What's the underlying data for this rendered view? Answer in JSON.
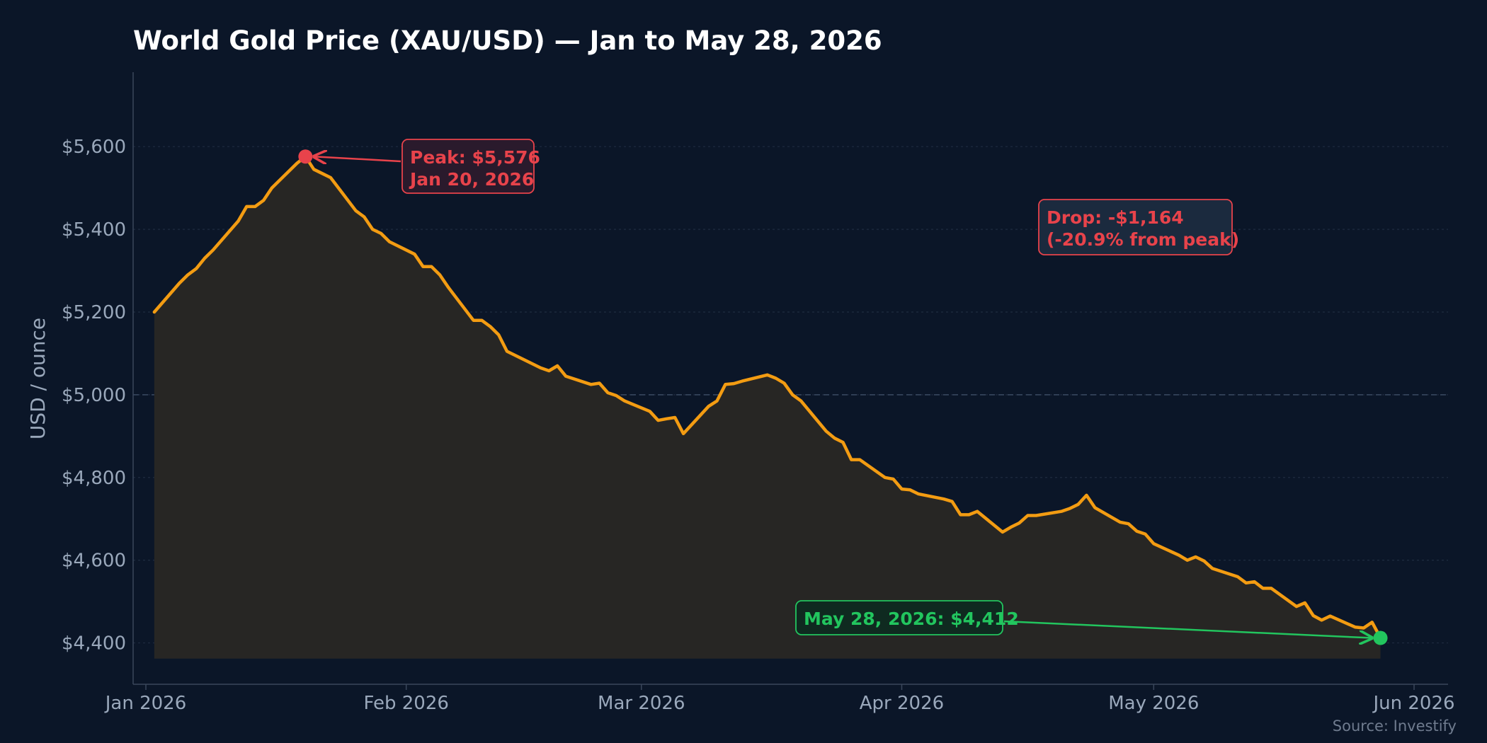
{
  "chart_data": {
    "type": "area",
    "title": "World Gold Price (XAU/USD) — Jan to May 28, 2026",
    "ylabel": "USD / ounce",
    "xlabel": "",
    "source": "Source: Investify",
    "xlim": [
      "2026-01-01",
      "2026-06-01"
    ],
    "ylim": [
      4300,
      5780
    ],
    "x_ticks": [
      {
        "date": "2026-01-01",
        "label": "Jan 2026"
      },
      {
        "date": "2026-02-01",
        "label": "Feb 2026"
      },
      {
        "date": "2026-03-01",
        "label": "Mar 2026"
      },
      {
        "date": "2026-04-01",
        "label": "Apr 2026"
      },
      {
        "date": "2026-05-01",
        "label": "May 2026"
      },
      {
        "date": "2026-06-01",
        "label": "Jun 2026"
      }
    ],
    "y_ticks": [
      {
        "value": 4400,
        "label": "$4,400"
      },
      {
        "value": 4600,
        "label": "$4,600"
      },
      {
        "value": 4800,
        "label": "$4,800"
      },
      {
        "value": 5000,
        "label": "$5,000"
      },
      {
        "value": 5200,
        "label": "$5,200"
      },
      {
        "value": 5400,
        "label": "$5,400"
      },
      {
        "value": 5600,
        "label": "$5,600"
      }
    ],
    "grid": true,
    "reference_line": {
      "value": 5000,
      "label": "$5,000"
    },
    "colors": {
      "line": "#f39c12",
      "peak": "#e8434b",
      "latest": "#22c55e",
      "background": "#0b1628",
      "grid": "#1f2c40",
      "text": "#9aa8bb"
    },
    "series": [
      {
        "x": [
          "2026-01-02",
          "2026-01-05",
          "2026-01-06",
          "2026-01-07",
          "2026-01-08",
          "2026-01-09",
          "2026-01-12",
          "2026-01-13",
          "2026-01-14",
          "2026-01-15",
          "2026-01-16",
          "2026-01-19",
          "2026-01-20",
          "2026-01-21",
          "2026-01-22",
          "2026-01-23",
          "2026-01-26",
          "2026-01-27",
          "2026-01-28",
          "2026-01-29",
          "2026-01-30",
          "2026-02-02",
          "2026-02-03",
          "2026-02-04",
          "2026-02-05",
          "2026-02-06",
          "2026-02-09",
          "2026-02-10",
          "2026-02-11",
          "2026-02-12",
          "2026-02-13",
          "2026-02-16",
          "2026-02-17",
          "2026-02-18",
          "2026-02-19",
          "2026-02-20",
          "2026-02-23",
          "2026-02-24",
          "2026-02-25",
          "2026-02-26",
          "2026-02-27",
          "2026-03-02",
          "2026-03-03",
          "2026-03-04",
          "2026-03-05",
          "2026-03-06",
          "2026-03-09",
          "2026-03-10",
          "2026-03-11",
          "2026-03-12",
          "2026-03-13",
          "2026-03-16",
          "2026-03-17",
          "2026-03-18",
          "2026-03-19",
          "2026-03-20",
          "2026-03-23",
          "2026-03-24",
          "2026-03-25",
          "2026-03-26",
          "2026-03-27",
          "2026-03-30",
          "2026-03-31",
          "2026-04-01",
          "2026-04-02",
          "2026-04-03",
          "2026-04-06",
          "2026-04-07",
          "2026-04-08",
          "2026-04-09",
          "2026-04-10",
          "2026-04-13",
          "2026-04-14",
          "2026-04-15",
          "2026-04-16",
          "2026-04-17",
          "2026-04-20",
          "2026-04-21",
          "2026-04-22",
          "2026-04-23",
          "2026-04-24",
          "2026-04-27",
          "2026-04-28",
          "2026-04-29",
          "2026-04-30",
          "2026-05-01",
          "2026-05-04",
          "2026-05-05",
          "2026-05-06",
          "2026-05-07",
          "2026-05-08",
          "2026-05-11",
          "2026-05-12",
          "2026-05-13",
          "2026-05-14",
          "2026-05-15",
          "2026-05-18",
          "2026-05-19",
          "2026-05-20",
          "2026-05-21",
          "2026-05-22",
          "2026-05-25",
          "2026-05-26",
          "2026-05-27",
          "2026-05-28"
        ],
        "values": [
          5200,
          5270,
          5290,
          5305,
          5330,
          5350,
          5420,
          5455,
          5455,
          5470,
          5500,
          5560,
          5576,
          5545,
          5535,
          5525,
          5445,
          5430,
          5400,
          5390,
          5370,
          5340,
          5310,
          5310,
          5290,
          5260,
          5180,
          5180,
          5165,
          5145,
          5105,
          5075,
          5065,
          5058,
          5070,
          5045,
          5025,
          5028,
          5005,
          4998,
          4985,
          4960,
          4938,
          4942,
          4945,
          4906,
          4972,
          4985,
          5025,
          5027,
          5033,
          5048,
          5040,
          5028,
          5000,
          4985,
          4912,
          4895,
          4885,
          4843,
          4843,
          4800,
          4796,
          4772,
          4770,
          4760,
          4748,
          4742,
          4710,
          4710,
          4718,
          4668,
          4680,
          4690,
          4708,
          4708,
          4718,
          4725,
          4735,
          4757,
          4727,
          4692,
          4688,
          4670,
          4663,
          4640,
          4612,
          4600,
          4608,
          4598,
          4580,
          4560,
          4545,
          4548,
          4532,
          4532,
          4488,
          4497,
          4466,
          4455,
          4465,
          4438,
          4436,
          4450,
          4412
        ]
      }
    ],
    "annotations": [
      {
        "kind": "peak",
        "date": "2026-01-20",
        "value": 5576,
        "lines": [
          "Peak: $5,576",
          "Jan 20, 2026"
        ]
      },
      {
        "kind": "drop",
        "lines": [
          "Drop: -$1,164",
          "(-20.9% from peak)"
        ]
      },
      {
        "kind": "latest",
        "date": "2026-05-28",
        "value": 4412,
        "lines": [
          "May 28, 2026: $4,412"
        ]
      }
    ]
  }
}
